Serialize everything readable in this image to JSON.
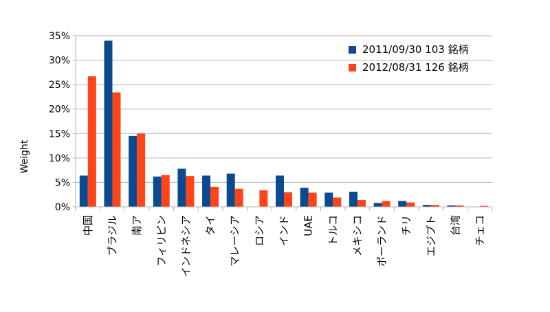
{
  "chart_data": {
    "type": "bar",
    "title": "",
    "xlabel": "",
    "ylabel": "Weight",
    "ylim": [
      0,
      0.35
    ],
    "yticks": [
      {
        "value": 0.0,
        "label": "0%"
      },
      {
        "value": 0.05,
        "label": "5%"
      },
      {
        "value": 0.1,
        "label": "10%"
      },
      {
        "value": 0.15,
        "label": "15%"
      },
      {
        "value": 0.2,
        "label": "20%"
      },
      {
        "value": 0.25,
        "label": "25%"
      },
      {
        "value": 0.3,
        "label": "30%"
      },
      {
        "value": 0.35,
        "label": "35%"
      }
    ],
    "grid": true,
    "legend_position": "top-right",
    "categories": [
      "中国",
      "ブラジル",
      "南ア",
      "フィリピン",
      "インドネシア",
      "タイ",
      "マレーシア",
      "ロシア",
      "インド",
      "UAE",
      "トルコ",
      "メキシコ",
      "ポーランド",
      "チリ",
      "エジプト",
      "台湾",
      "チェコ"
    ],
    "series": [
      {
        "name": "2011/09/30 103 銘柄",
        "color": "#0b4a8f",
        "values": [
          0.064,
          0.34,
          0.145,
          0.062,
          0.078,
          0.064,
          0.068,
          0.0,
          0.064,
          0.039,
          0.029,
          0.031,
          0.008,
          0.012,
          0.004,
          0.003,
          0.0
        ]
      },
      {
        "name": "2012/08/31 126 銘柄",
        "color": "#ff4419",
        "values": [
          0.267,
          0.234,
          0.15,
          0.065,
          0.063,
          0.041,
          0.037,
          0.034,
          0.03,
          0.029,
          0.019,
          0.014,
          0.012,
          0.009,
          0.004,
          0.003,
          0.002
        ]
      }
    ]
  }
}
